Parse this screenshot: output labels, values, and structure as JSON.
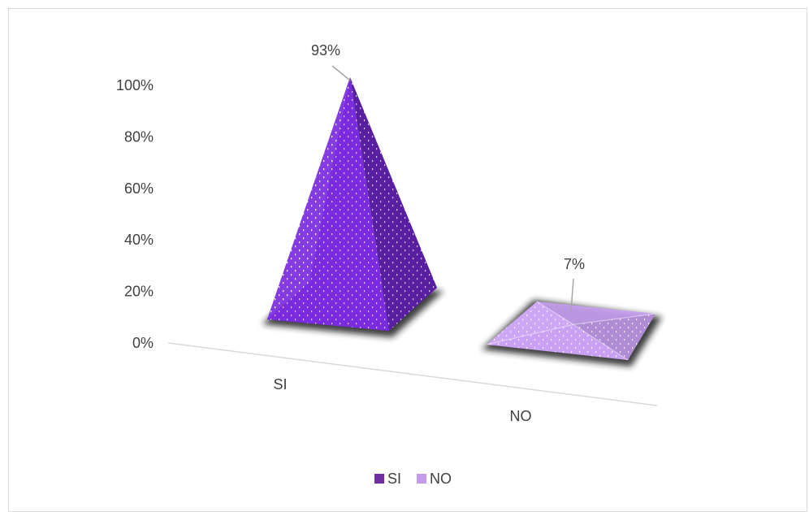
{
  "chart_data": {
    "type": "bar",
    "subtype": "3d-pyramid",
    "categories": [
      "SI",
      "NO"
    ],
    "values": [
      93,
      7
    ],
    "data_labels": [
      "93%",
      "7%"
    ],
    "y_ticks": [
      "0%",
      "20%",
      "40%",
      "60%",
      "80%",
      "100%"
    ],
    "ylim": [
      0,
      100
    ],
    "grid": false,
    "legend_position": "bottom",
    "legend": [
      {
        "label": "SI",
        "color": "#7030A0"
      },
      {
        "label": "NO",
        "color": "#C49BEA"
      }
    ],
    "colors": {
      "SI": "#7A2BE0",
      "NO": "#C9A0F2"
    }
  }
}
